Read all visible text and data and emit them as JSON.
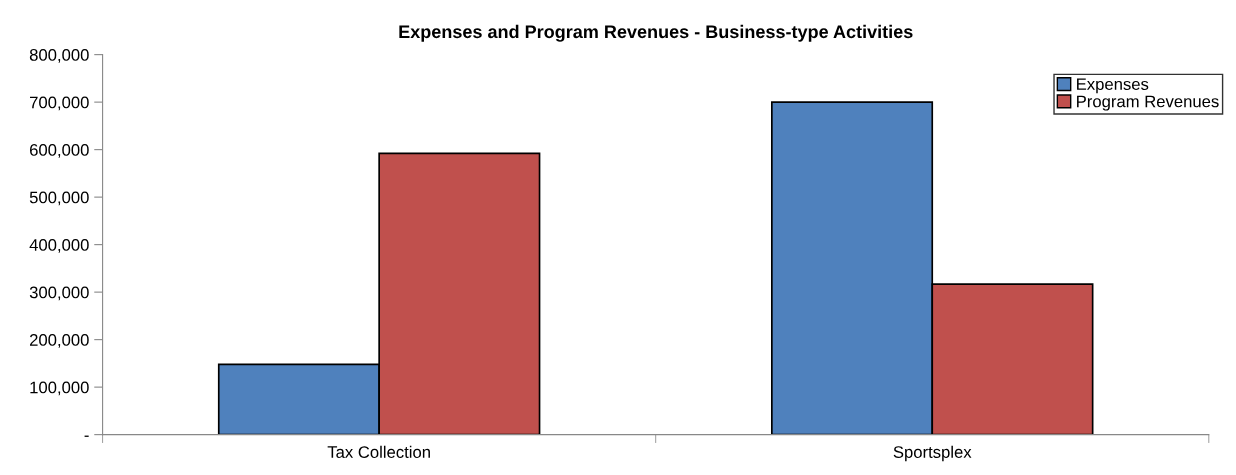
{
  "chart_data": {
    "type": "bar",
    "title": "Expenses and Program Revenues - Business-type Activities",
    "categories": [
      "Tax Collection",
      "Sportsplex"
    ],
    "series": [
      {
        "name": "Expenses",
        "color": "#4f81bd",
        "values": [
          148000,
          700000
        ]
      },
      {
        "name": "Program Revenues",
        "color": "#c0504d",
        "values": [
          592000,
          317000
        ]
      }
    ],
    "ylim": [
      0,
      800000
    ],
    "yticks": [
      {
        "value": 0,
        "label": "-"
      },
      {
        "value": 100000,
        "label": "100,000"
      },
      {
        "value": 200000,
        "label": "200,000"
      },
      {
        "value": 300000,
        "label": "300,000"
      },
      {
        "value": 400000,
        "label": "400,000"
      },
      {
        "value": 500000,
        "label": "500,000"
      },
      {
        "value": 600000,
        "label": "600,000"
      },
      {
        "value": 700000,
        "label": "700,000"
      },
      {
        "value": 800000,
        "label": "800,000"
      }
    ],
    "grid": false,
    "legend": "top right"
  }
}
